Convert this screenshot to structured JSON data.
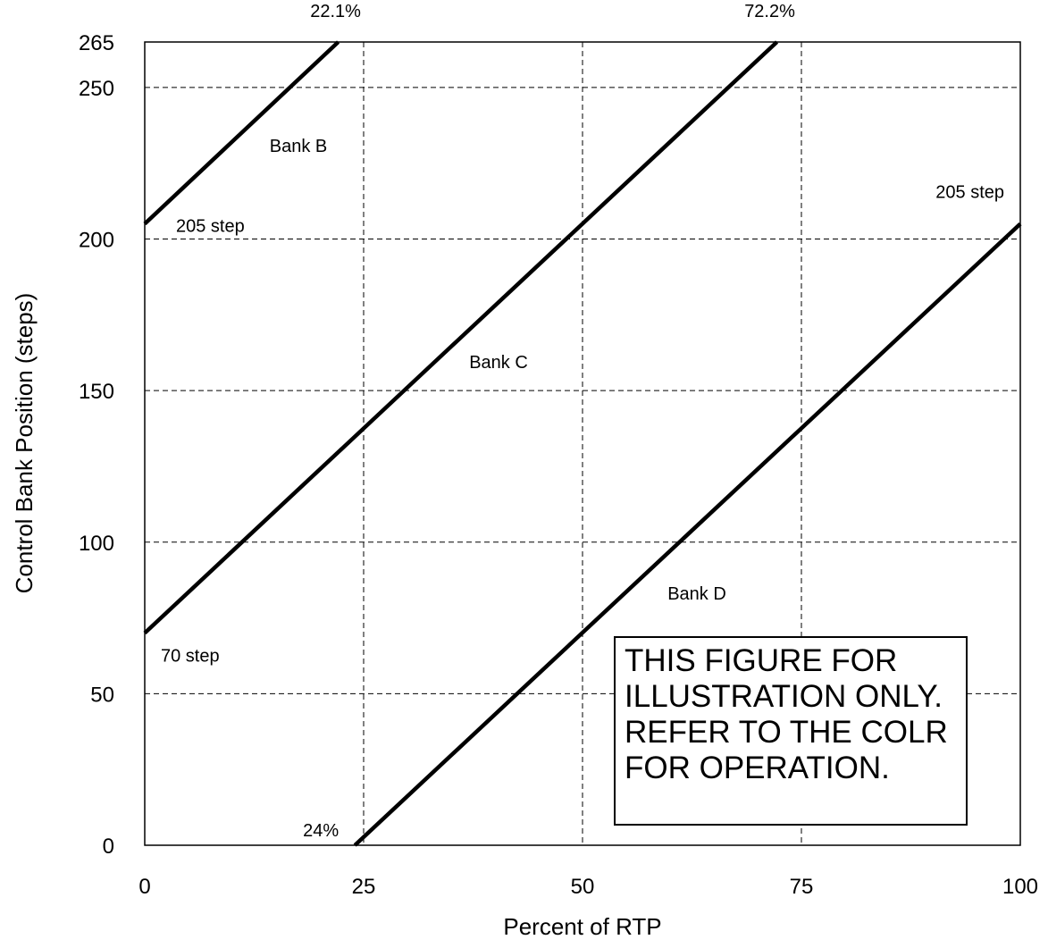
{
  "chart_data": {
    "type": "line",
    "xlabel": "Percent of RTP",
    "ylabel": "Control Bank Position (steps)",
    "xlim": [
      0,
      100
    ],
    "ylim": [
      0,
      265
    ],
    "xticks": [
      0,
      25,
      50,
      75,
      100
    ],
    "yticks": [
      0,
      50,
      100,
      150,
      200,
      250,
      265
    ],
    "grid": true,
    "series": [
      {
        "name": "Bank B",
        "points": [
          [
            0,
            205
          ],
          [
            22.1,
            265
          ]
        ]
      },
      {
        "name": "Bank C",
        "points": [
          [
            0,
            70
          ],
          [
            72.2,
            265
          ]
        ]
      },
      {
        "name": "Bank D",
        "points": [
          [
            24,
            0
          ],
          [
            100,
            205
          ]
        ]
      }
    ],
    "annotations": [
      {
        "text": "22.1%",
        "x": 22.1,
        "y": 265
      },
      {
        "text": "72.2%",
        "x": 72.2,
        "y": 265
      },
      {
        "text": "205 step",
        "x": 0,
        "y": 205
      },
      {
        "text": "205 step",
        "x": 100,
        "y": 205
      },
      {
        "text": "70 step",
        "x": 0,
        "y": 70
      },
      {
        "text": "24%",
        "x": 24,
        "y": 0
      }
    ],
    "note_lines": [
      "THIS FIGURE FOR",
      "ILLUSTRATION ONLY.",
      "REFER TO THE COLR",
      "FOR OPERATION."
    ]
  }
}
